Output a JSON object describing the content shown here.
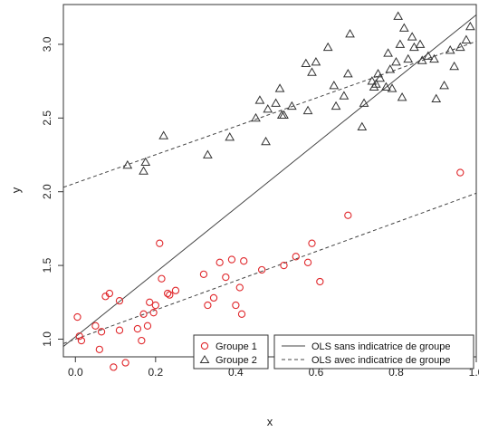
{
  "chart_data": {
    "type": "scatter",
    "title": "",
    "xlabel": "x",
    "ylabel": "y",
    "xlim": [
      -0.03,
      1.0
    ],
    "ylim": [
      0.88,
      3.27
    ],
    "x_ticks": [
      0.0,
      0.2,
      0.4,
      0.6,
      0.8,
      1.0
    ],
    "x_tick_labels": [
      "0.0",
      "0.2",
      "0.4",
      "0.6",
      "0.8",
      "1.0"
    ],
    "y_ticks": [
      1.0,
      1.5,
      2.0,
      2.5,
      3.0
    ],
    "y_tick_labels": [
      "1.0",
      "1.5",
      "2.0",
      "2.5",
      "3.0"
    ],
    "grid": false,
    "series": [
      {
        "name": "Groupe 1",
        "marker": "circle",
        "color": "#e0282c",
        "points": [
          [
            0.005,
            1.15
          ],
          [
            0.01,
            1.02
          ],
          [
            0.015,
            0.99
          ],
          [
            0.05,
            1.09
          ],
          [
            0.06,
            0.93
          ],
          [
            0.065,
            1.05
          ],
          [
            0.075,
            1.29
          ],
          [
            0.085,
            1.31
          ],
          [
            0.095,
            0.81
          ],
          [
            0.11,
            1.06
          ],
          [
            0.11,
            1.26
          ],
          [
            0.125,
            0.84
          ],
          [
            0.155,
            1.07
          ],
          [
            0.165,
            0.99
          ],
          [
            0.17,
            1.17
          ],
          [
            0.18,
            1.09
          ],
          [
            0.185,
            1.25
          ],
          [
            0.195,
            1.18
          ],
          [
            0.2,
            1.23
          ],
          [
            0.21,
            1.65
          ],
          [
            0.215,
            1.41
          ],
          [
            0.23,
            1.31
          ],
          [
            0.235,
            1.3
          ],
          [
            0.25,
            1.33
          ],
          [
            0.32,
            1.44
          ],
          [
            0.33,
            1.23
          ],
          [
            0.345,
            1.28
          ],
          [
            0.36,
            1.52
          ],
          [
            0.375,
            1.42
          ],
          [
            0.39,
            1.54
          ],
          [
            0.4,
            1.23
          ],
          [
            0.41,
            1.35
          ],
          [
            0.415,
            1.17
          ],
          [
            0.42,
            1.53
          ],
          [
            0.465,
            1.47
          ],
          [
            0.52,
            1.5
          ],
          [
            0.55,
            1.56
          ],
          [
            0.58,
            1.52
          ],
          [
            0.59,
            1.65
          ],
          [
            0.61,
            1.39
          ],
          [
            0.68,
            1.84
          ],
          [
            0.96,
            2.13
          ]
        ]
      },
      {
        "name": "Groupe 2",
        "marker": "triangle",
        "color": "#333333",
        "points": [
          [
            0.13,
            2.18
          ],
          [
            0.17,
            2.14
          ],
          [
            0.175,
            2.2
          ],
          [
            0.22,
            2.38
          ],
          [
            0.33,
            2.25
          ],
          [
            0.385,
            2.37
          ],
          [
            0.45,
            2.5
          ],
          [
            0.46,
            2.62
          ],
          [
            0.475,
            2.34
          ],
          [
            0.48,
            2.56
          ],
          [
            0.5,
            2.6
          ],
          [
            0.51,
            2.7
          ],
          [
            0.515,
            2.52
          ],
          [
            0.52,
            2.52
          ],
          [
            0.54,
            2.58
          ],
          [
            0.575,
            2.87
          ],
          [
            0.58,
            2.55
          ],
          [
            0.59,
            2.81
          ],
          [
            0.6,
            2.88
          ],
          [
            0.63,
            2.98
          ],
          [
            0.645,
            2.72
          ],
          [
            0.65,
            2.58
          ],
          [
            0.67,
            2.65
          ],
          [
            0.68,
            2.8
          ],
          [
            0.685,
            3.07
          ],
          [
            0.715,
            2.44
          ],
          [
            0.72,
            2.6
          ],
          [
            0.74,
            2.75
          ],
          [
            0.745,
            2.71
          ],
          [
            0.75,
            2.73
          ],
          [
            0.755,
            2.8
          ],
          [
            0.76,
            2.77
          ],
          [
            0.775,
            2.71
          ],
          [
            0.78,
            2.94
          ],
          [
            0.785,
            2.83
          ],
          [
            0.79,
            2.7
          ],
          [
            0.8,
            2.88
          ],
          [
            0.805,
            3.19
          ],
          [
            0.81,
            3.0
          ],
          [
            0.815,
            2.64
          ],
          [
            0.82,
            3.11
          ],
          [
            0.83,
            2.9
          ],
          [
            0.84,
            3.05
          ],
          [
            0.845,
            2.98
          ],
          [
            0.86,
            3.0
          ],
          [
            0.865,
            2.89
          ],
          [
            0.88,
            2.92
          ],
          [
            0.895,
            2.9
          ],
          [
            0.9,
            2.63
          ],
          [
            0.92,
            2.72
          ],
          [
            0.935,
            2.96
          ],
          [
            0.945,
            2.85
          ],
          [
            0.96,
            2.98
          ],
          [
            0.975,
            3.03
          ],
          [
            0.985,
            3.12
          ]
        ]
      }
    ],
    "lines": [
      {
        "name": "OLS sans indicatrice de groupe",
        "style": "solid",
        "x": [
          -0.03,
          1.0
        ],
        "y": [
          0.95,
          3.2
        ]
      },
      {
        "name": "OLS avec indicatrice de groupe (groupe 2)",
        "style": "dashed",
        "x": [
          -0.03,
          1.0
        ],
        "y": [
          2.03,
          3.02
        ]
      },
      {
        "name": "OLS avec indicatrice de groupe (groupe 1)",
        "style": "dashed",
        "x": [
          -0.03,
          1.0
        ],
        "y": [
          0.97,
          1.99
        ]
      }
    ],
    "legend_left": {
      "placement": "bottom-center",
      "entries": [
        {
          "label": "Groupe 1",
          "marker": "circle",
          "color": "#e0282c"
        },
        {
          "label": "Groupe 2",
          "marker": "triangle",
          "color": "#333333"
        }
      ]
    },
    "legend_right": {
      "placement": "bottom-right",
      "entries": [
        {
          "label": "OLS sans indicatrice de groupe",
          "style": "solid"
        },
        {
          "label": "OLS avec indicatrice de groupe",
          "style": "dashed"
        }
      ]
    }
  }
}
